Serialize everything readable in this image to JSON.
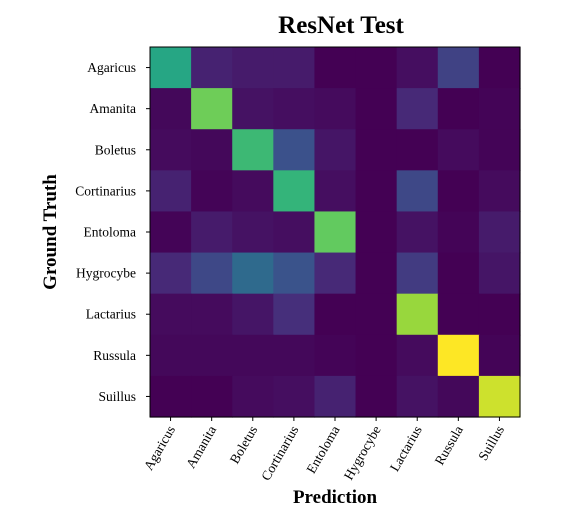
{
  "chart_data": {
    "type": "heatmap",
    "title": "ResNet Test",
    "xlabel": "Prediction",
    "ylabel": "Ground Truth",
    "x_categories": [
      "Agaricus",
      "Amanita",
      "Boletus",
      "Cortinarius",
      "Entoloma",
      "Hygrocybe",
      "Lactarius",
      "Russula",
      "Suillus"
    ],
    "y_categories": [
      "Agaricus",
      "Amanita",
      "Boletus",
      "Cortinarius",
      "Entoloma",
      "Hygrocybe",
      "Lactarius",
      "Russula",
      "Suillus"
    ],
    "colormap": "viridis",
    "value_range": [
      0,
      1
    ],
    "values": [
      [
        0.6,
        0.1,
        0.08,
        0.08,
        0.0,
        0.0,
        0.04,
        0.2,
        0.0
      ],
      [
        0.02,
        0.78,
        0.05,
        0.04,
        0.03,
        0.0,
        0.12,
        0.0,
        0.01
      ],
      [
        0.03,
        0.02,
        0.68,
        0.25,
        0.06,
        0.0,
        0.0,
        0.03,
        0.01
      ],
      [
        0.1,
        0.01,
        0.03,
        0.66,
        0.04,
        0.0,
        0.22,
        0.0,
        0.03
      ],
      [
        0.01,
        0.08,
        0.05,
        0.04,
        0.76,
        0.0,
        0.05,
        0.01,
        0.08
      ],
      [
        0.12,
        0.22,
        0.35,
        0.26,
        0.12,
        0.0,
        0.18,
        0.0,
        0.06
      ],
      [
        0.03,
        0.03,
        0.06,
        0.14,
        0.0,
        0.0,
        0.85,
        0.0,
        0.0
      ],
      [
        0.02,
        0.02,
        0.02,
        0.02,
        0.01,
        0.0,
        0.03,
        1.0,
        0.01
      ],
      [
        0.0,
        0.0,
        0.03,
        0.04,
        0.1,
        0.0,
        0.05,
        0.02,
        0.93
      ]
    ]
  }
}
